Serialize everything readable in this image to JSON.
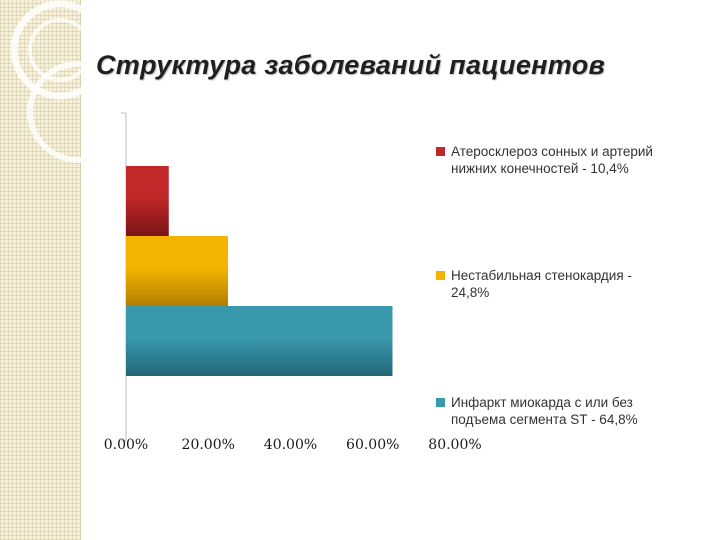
{
  "title": "Структура заболеваний пациентов",
  "chart_data": {
    "type": "bar",
    "orientation": "horizontal",
    "xlim": [
      0,
      0.8
    ],
    "x_ticks": [
      "0.00%",
      "20.00%",
      "40.00%",
      "60.00%",
      "80.00%"
    ],
    "grid": false,
    "legend_position": "right",
    "series": [
      {
        "name": "Атеросклероз сонных и артерий нижних конечностей - 10,4%",
        "value": 0.104,
        "color": "#c0282a",
        "color_dark": "#7a1416"
      },
      {
        "name": "Нестабильная стенокардия - 24,8%",
        "value": 0.248,
        "color": "#f2b400",
        "color_dark": "#b27f00"
      },
      {
        "name": "Инфаркт миокарда с или без подъема сегмента ST - 64,8%",
        "value": 0.648,
        "color": "#3a98ad",
        "color_dark": "#22677a"
      }
    ]
  }
}
